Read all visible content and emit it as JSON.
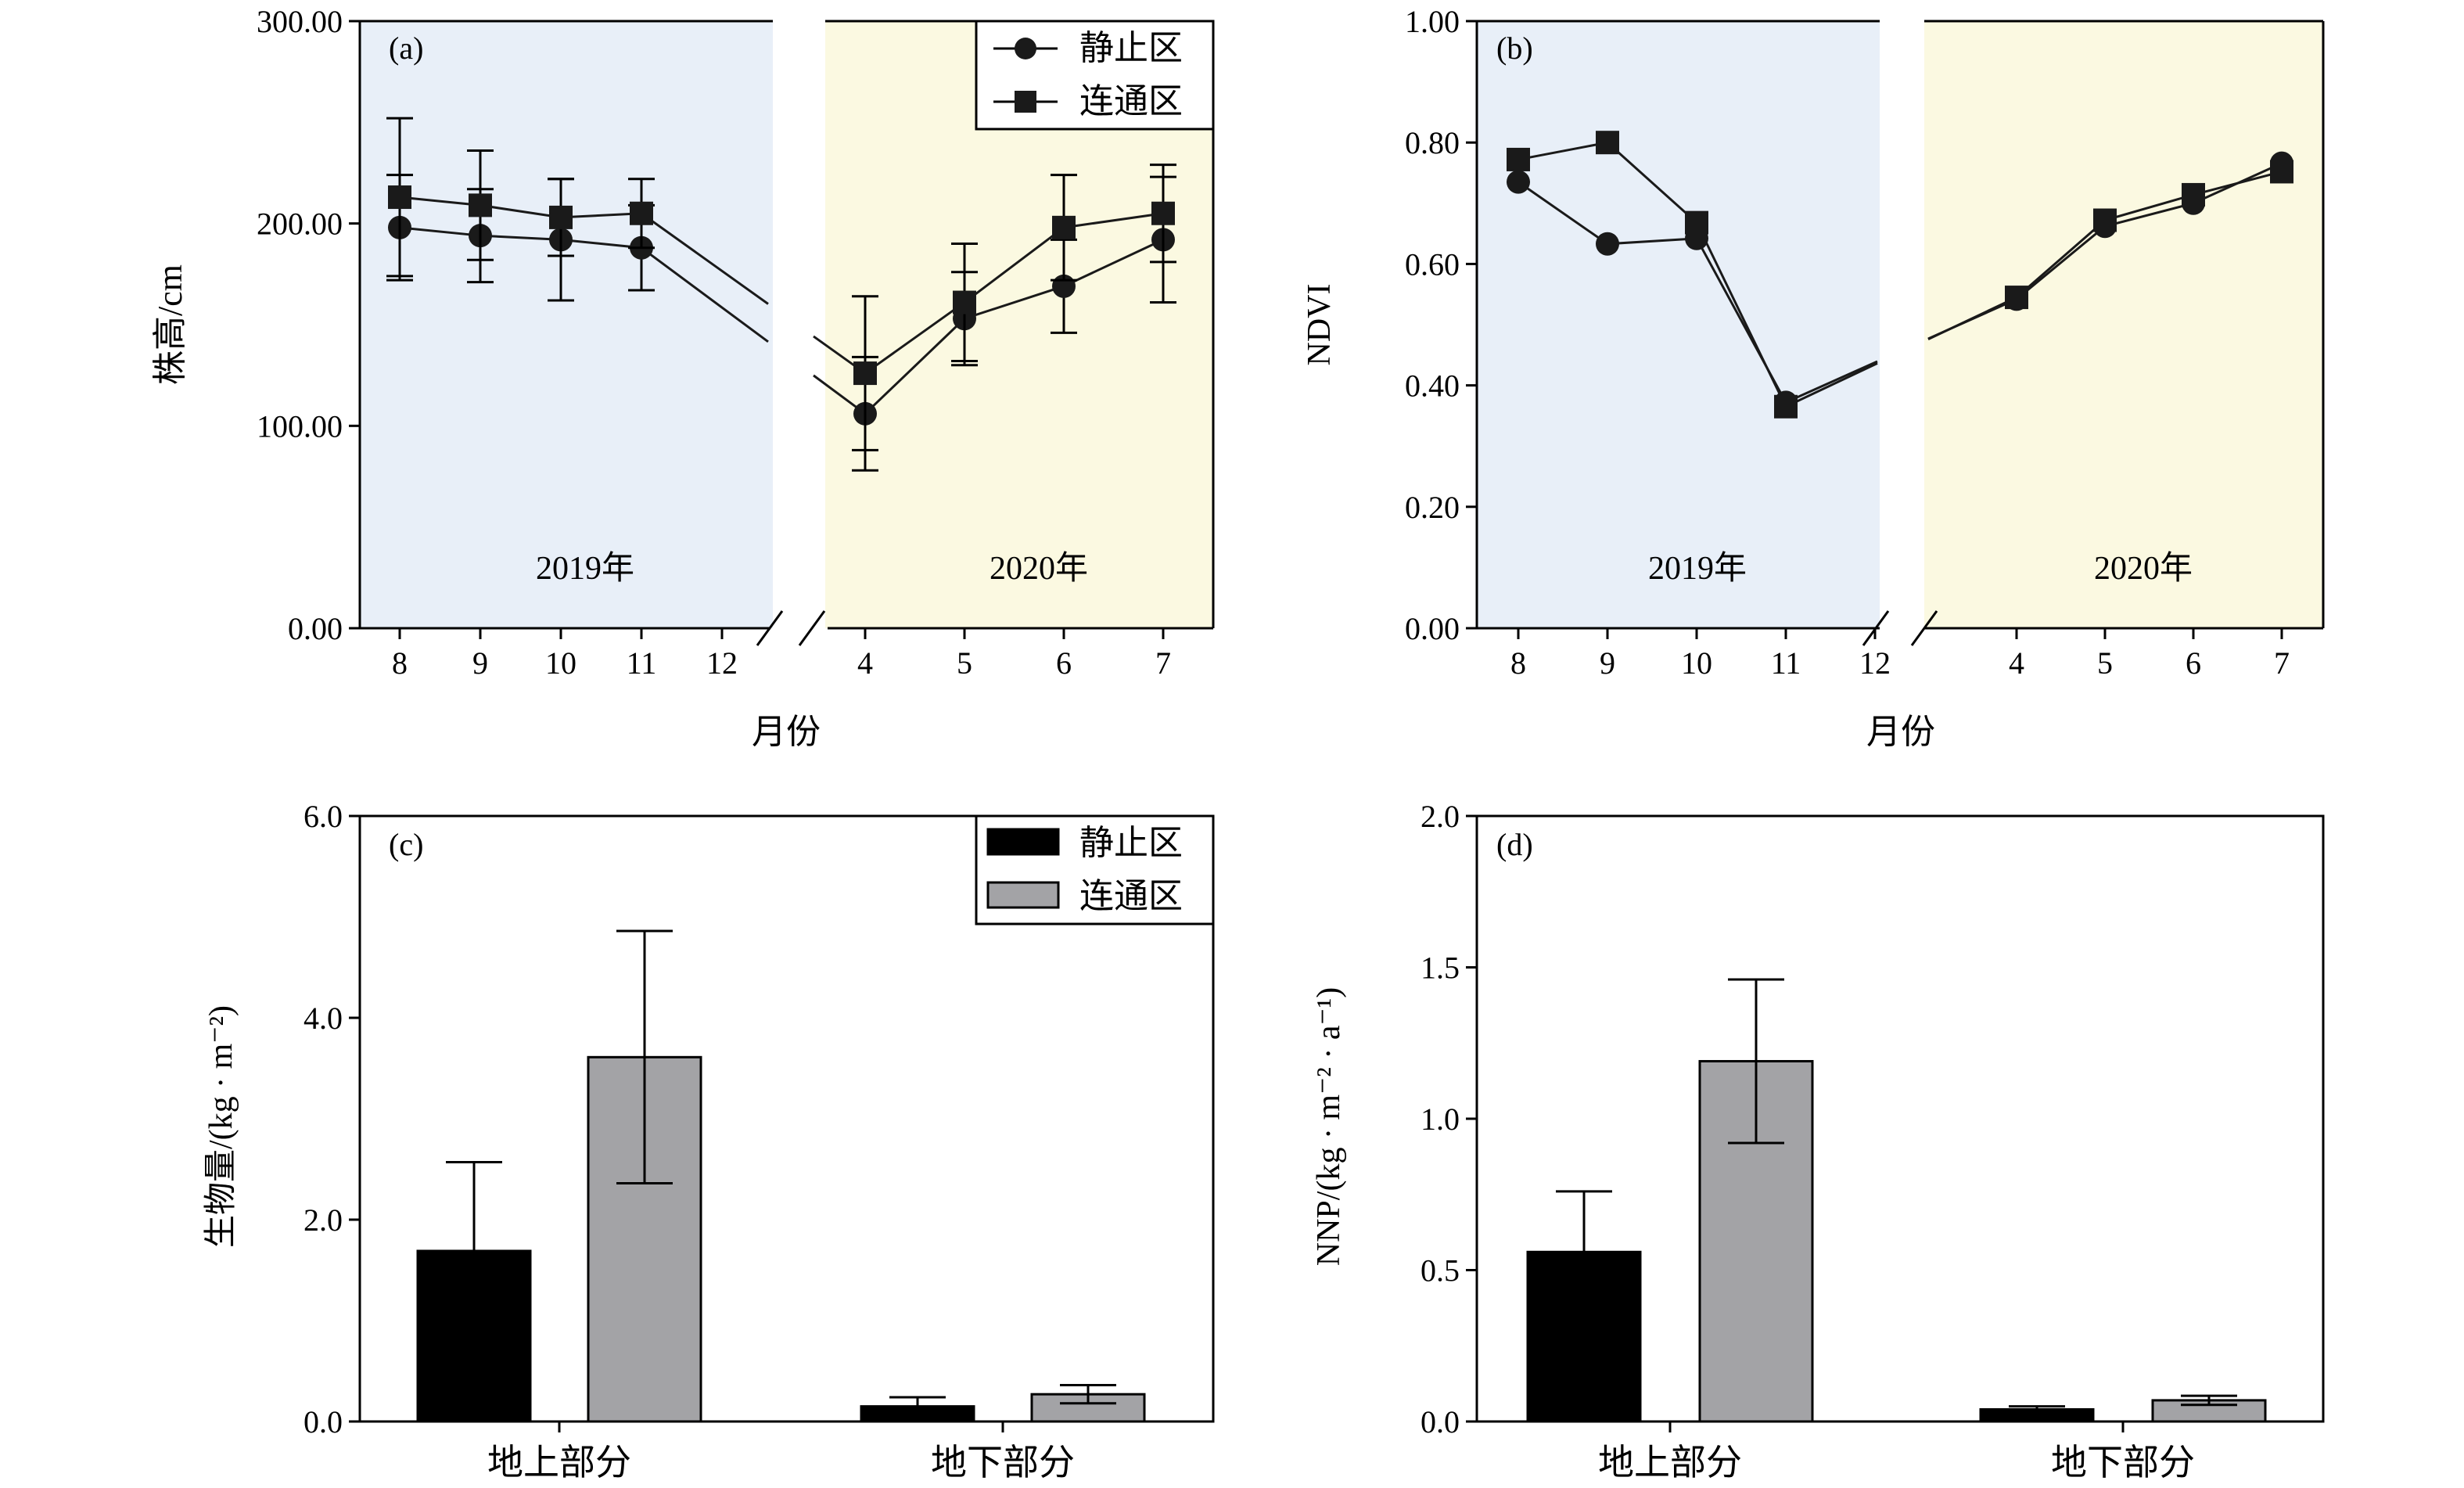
{
  "colors": {
    "bg_2019": "#e8eff8",
    "bg_2020": "#fbf9e1",
    "jingzhi_bar": "#000000",
    "liantong_bar": "#a3a3a6",
    "line": "#1a1a1a"
  },
  "chart_data": [
    {
      "panel": "(a)",
      "type": "line",
      "xlabel": "月份",
      "ylabel": "株高/cm",
      "ylim": [
        0,
        300
      ],
      "y_ticks": [
        "0.00",
        "100.00",
        "200.00",
        "300.00"
      ],
      "period_labels": [
        "2019年",
        "2020年"
      ],
      "x_ticks_2019": [
        "8",
        "9",
        "10",
        "11",
        "12"
      ],
      "x_ticks_2020": [
        "4",
        "5",
        "6",
        "7"
      ],
      "legend": {
        "position": "top-right",
        "items": [
          "静止区",
          "连通区"
        ]
      },
      "series": [
        {
          "name": "静止区",
          "marker": "circle",
          "x_2019": [
            8,
            9,
            10,
            11
          ],
          "y_2019": [
            198,
            194,
            192,
            188
          ],
          "err_2019": [
            26,
            23,
            30,
            21
          ],
          "x_2020": [
            4,
            5,
            6,
            7
          ],
          "y_2020": [
            106,
            153,
            169,
            192
          ],
          "err_2020": [
            28,
            23,
            23,
            31
          ]
        },
        {
          "name": "连通区",
          "marker": "square",
          "x_2019": [
            8,
            9,
            10,
            11
          ],
          "y_2019": [
            213,
            209,
            203,
            205
          ],
          "err_2019": [
            39,
            27,
            19,
            17
          ],
          "x_2020": [
            4,
            5,
            6,
            7
          ],
          "y_2020": [
            126,
            161,
            198,
            205
          ],
          "err_2020": [
            38,
            29,
            26,
            24
          ]
        }
      ]
    },
    {
      "panel": "(b)",
      "type": "line",
      "xlabel": "月份",
      "ylabel": "NDVI",
      "ylim": [
        0,
        1
      ],
      "y_ticks": [
        "0.00",
        "0.20",
        "0.40",
        "0.60",
        "0.80",
        "1.00"
      ],
      "period_labels": [
        "2019年",
        "2020年"
      ],
      "x_ticks_2019": [
        "8",
        "9",
        "10",
        "11",
        "12"
      ],
      "x_ticks_2020": [
        "4",
        "5",
        "6",
        "7"
      ],
      "series": [
        {
          "name": "静止区",
          "marker": "circle",
          "x_2019": [
            8,
            9,
            10,
            11
          ],
          "y_2019": [
            0.735,
            0.633,
            0.642,
            0.372
          ],
          "x_2020": [
            4,
            5,
            6,
            7
          ],
          "y_2020": [
            0.542,
            0.662,
            0.7,
            0.766
          ]
        },
        {
          "name": "连通区",
          "marker": "square",
          "x_2019": [
            8,
            9,
            10,
            11
          ],
          "y_2019": [
            0.772,
            0.8,
            0.668,
            0.365
          ],
          "x_2020": [
            4,
            5,
            6,
            7
          ],
          "y_2020": [
            0.545,
            0.672,
            0.714,
            0.752
          ]
        }
      ]
    },
    {
      "panel": "(c)",
      "type": "bar",
      "ylabel": "生物量/(kg · m⁻²)",
      "ylim": [
        0,
        6
      ],
      "y_ticks": [
        "0.0",
        "2.0",
        "4.0",
        "6.0"
      ],
      "categories": [
        "地上部分",
        "地下部分"
      ],
      "legend": {
        "position": "top-right",
        "items": [
          "静止区",
          "连通区"
        ]
      },
      "series": [
        {
          "name": "静止区",
          "values": [
            1.69,
            0.15
          ],
          "err": [
            0.88,
            0.09
          ]
        },
        {
          "name": "连通区",
          "values": [
            3.61,
            0.27
          ],
          "err": [
            1.25,
            0.09
          ]
        }
      ]
    },
    {
      "panel": "(d)",
      "type": "bar",
      "ylabel": "NNP/(kg · m⁻² · a⁻¹)",
      "ylim": [
        0,
        2
      ],
      "y_ticks": [
        "0.0",
        "0.5",
        "1.0",
        "1.5",
        "2.0"
      ],
      "categories": [
        "地上部分",
        "地下部分"
      ],
      "series": [
        {
          "name": "静止区",
          "values": [
            0.56,
            0.04
          ],
          "err": [
            0.2,
            0.01
          ]
        },
        {
          "name": "连通区",
          "values": [
            1.19,
            0.07
          ],
          "err": [
            0.27,
            0.015
          ]
        }
      ]
    }
  ]
}
